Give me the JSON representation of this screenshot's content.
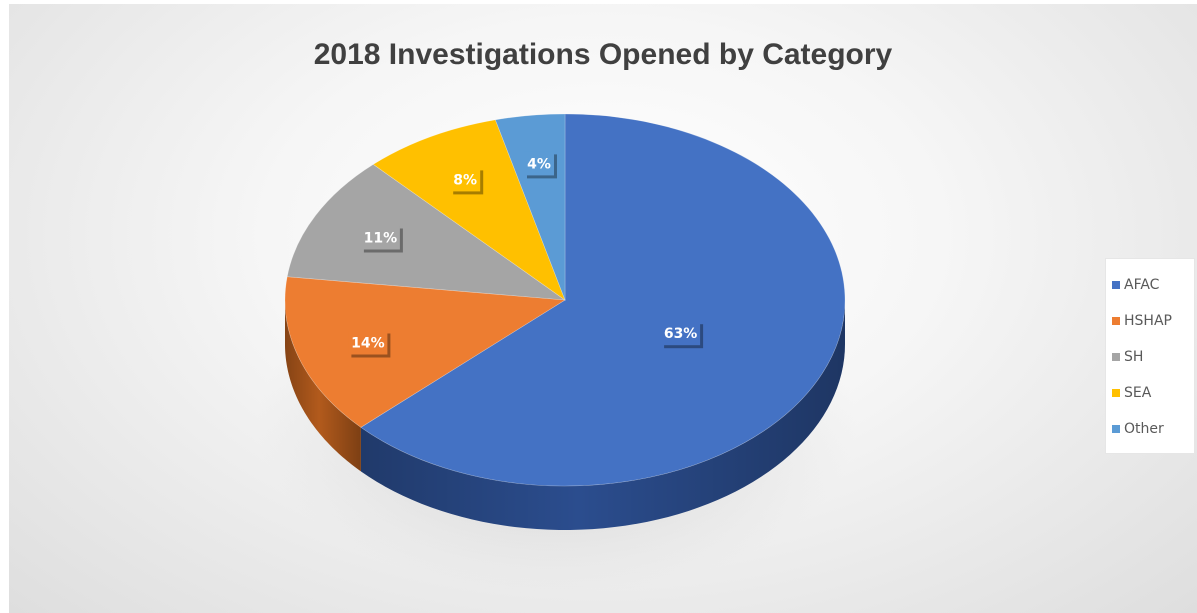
{
  "chart_data": {
    "type": "pie",
    "title": "2018 Investigations Opened by Category",
    "slices": [
      {
        "label": "AFAC",
        "value": 63,
        "display": "63%",
        "color": "#4472C4",
        "side": "#2B4D8E"
      },
      {
        "label": "HSHAP",
        "value": 14,
        "display": "14%",
        "color": "#ED7D31",
        "side": "#B25A1C"
      },
      {
        "label": "SH",
        "value": 11,
        "display": "11%",
        "color": "#A5A5A5",
        "side": "#777777"
      },
      {
        "label": "SEA",
        "value": 8,
        "display": "8%",
        "color": "#FFC000",
        "side": "#BF8F00"
      },
      {
        "label": "Other",
        "value": 4,
        "display": "4%",
        "color": "#5B9BD5",
        "side": "#3C70A0"
      }
    ],
    "legend_position": "right",
    "three_d": true
  }
}
